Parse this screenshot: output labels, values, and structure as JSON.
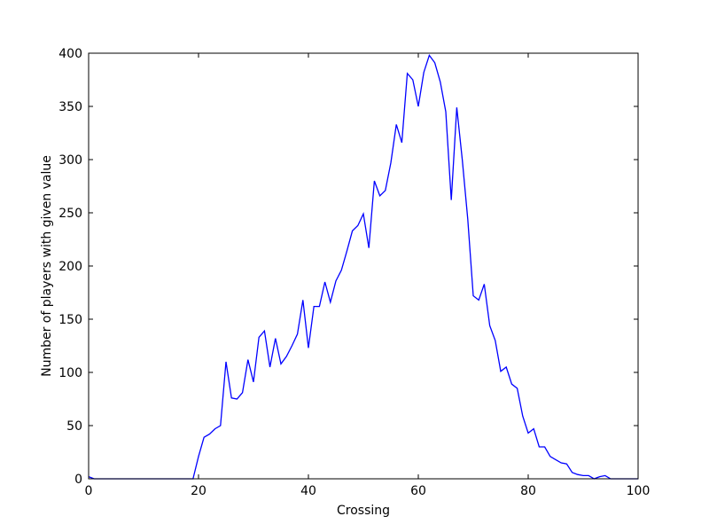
{
  "chart_data": {
    "type": "line",
    "title": "",
    "xlabel": "Crossing",
    "ylabel": "Number of players with given value",
    "xlim": [
      0,
      100
    ],
    "ylim": [
      0,
      400
    ],
    "xticks": [
      0,
      20,
      40,
      60,
      80,
      100
    ],
    "yticks": [
      0,
      50,
      100,
      150,
      200,
      250,
      300,
      350,
      400
    ],
    "grid": false,
    "legend": "none",
    "line_color": "#0000ff",
    "series": [
      {
        "x": [
          0,
          1,
          2,
          3,
          4,
          5,
          6,
          7,
          8,
          9,
          10,
          11,
          12,
          13,
          14,
          15,
          16,
          17,
          18,
          19,
          20,
          21,
          22,
          23,
          24,
          25,
          26,
          27,
          28,
          29,
          30,
          31,
          32,
          33,
          34,
          35,
          36,
          37,
          38,
          39,
          40,
          41,
          42,
          43,
          44,
          45,
          46,
          47,
          48,
          49,
          50,
          51,
          52,
          53,
          54,
          55,
          56,
          57,
          58,
          59,
          60,
          61,
          62,
          63,
          64,
          65,
          66,
          67,
          68,
          69,
          70,
          71,
          72,
          73,
          74,
          75,
          76,
          77,
          78,
          79,
          80,
          81,
          82,
          83,
          84,
          85,
          86,
          87,
          88,
          89,
          90,
          91,
          92,
          93,
          94,
          95,
          96,
          97,
          98,
          99,
          100
        ],
        "y": [
          2,
          0,
          0,
          0,
          0,
          0,
          0,
          0,
          0,
          0,
          0,
          0,
          0,
          0,
          0,
          0,
          0,
          0,
          0,
          0,
          21,
          39,
          42,
          47,
          50,
          110,
          76,
          75,
          81,
          112,
          91,
          133,
          139,
          105,
          132,
          108,
          115,
          125,
          136,
          168,
          123,
          162,
          162,
          185,
          166,
          186,
          196,
          214,
          233,
          238,
          249,
          217,
          280,
          266,
          271,
          297,
          333,
          316,
          381,
          375,
          350,
          382,
          398,
          391,
          373,
          345,
          262,
          349,
          300,
          244,
          172,
          168,
          183,
          144,
          130,
          101,
          105,
          89,
          85,
          59,
          43,
          47,
          30,
          30,
          21,
          18,
          15,
          14,
          6,
          4,
          3,
          3,
          0,
          2,
          3,
          0,
          0,
          0,
          0,
          0,
          0
        ]
      }
    ]
  }
}
